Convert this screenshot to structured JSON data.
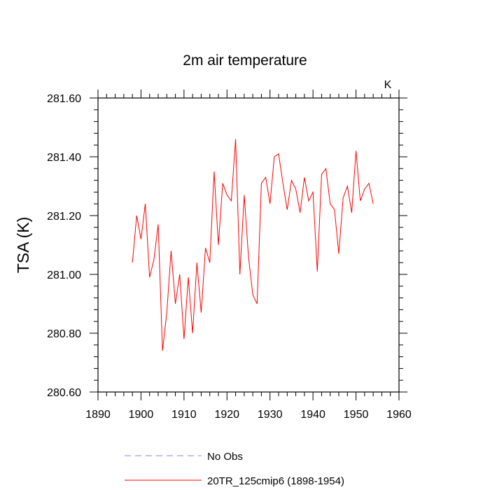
{
  "chart_data": {
    "type": "line",
    "title": "2m air temperature",
    "units_label": "K",
    "ylabel": "TSA  (K)",
    "xlabel": "",
    "xlim": [
      1890,
      1960
    ],
    "ylim": [
      280.6,
      281.6
    ],
    "x_ticks": [
      1890,
      1900,
      1910,
      1920,
      1930,
      1940,
      1950,
      1960
    ],
    "y_ticks": [
      "280.60",
      "280.80",
      "281.00",
      "281.20",
      "281.40",
      "281.60"
    ],
    "y_tick_values": [
      280.6,
      280.8,
      281.0,
      281.2,
      281.4,
      281.6
    ],
    "grid": false,
    "legend_position": "bottom",
    "legend": [
      {
        "label": "No Obs",
        "color": "#8080ff",
        "style": "dashed"
      },
      {
        "label": "20TR_125cmip6 (1898-1954)",
        "color": "#ff0000",
        "style": "solid"
      }
    ],
    "series": [
      {
        "name": "20TR_125cmip6 (1898-1954)",
        "color": "#ff0000",
        "x": [
          1898,
          1899,
          1900,
          1901,
          1902,
          1903,
          1904,
          1905,
          1906,
          1907,
          1908,
          1909,
          1910,
          1911,
          1912,
          1913,
          1914,
          1915,
          1916,
          1917,
          1918,
          1919,
          1920,
          1921,
          1922,
          1923,
          1924,
          1925,
          1926,
          1927,
          1928,
          1929,
          1930,
          1931,
          1932,
          1933,
          1934,
          1935,
          1936,
          1937,
          1938,
          1939,
          1940,
          1941,
          1942,
          1943,
          1944,
          1945,
          1946,
          1947,
          1948,
          1949,
          1950,
          1951,
          1952,
          1953,
          1954
        ],
        "values": [
          281.04,
          281.2,
          281.12,
          281.24,
          280.99,
          281.05,
          281.17,
          280.74,
          280.87,
          281.08,
          280.9,
          281.0,
          280.78,
          280.99,
          280.8,
          281.04,
          280.87,
          281.09,
          281.04,
          281.35,
          281.1,
          281.31,
          281.27,
          281.25,
          281.46,
          281.0,
          281.27,
          281.06,
          280.93,
          280.9,
          281.31,
          281.33,
          281.24,
          281.4,
          281.41,
          281.31,
          281.22,
          281.32,
          281.29,
          281.21,
          281.33,
          281.25,
          281.28,
          281.01,
          281.34,
          281.36,
          281.24,
          281.22,
          281.07,
          281.26,
          281.3,
          281.21,
          281.42,
          281.25,
          281.29,
          281.31,
          281.24
        ]
      }
    ]
  }
}
